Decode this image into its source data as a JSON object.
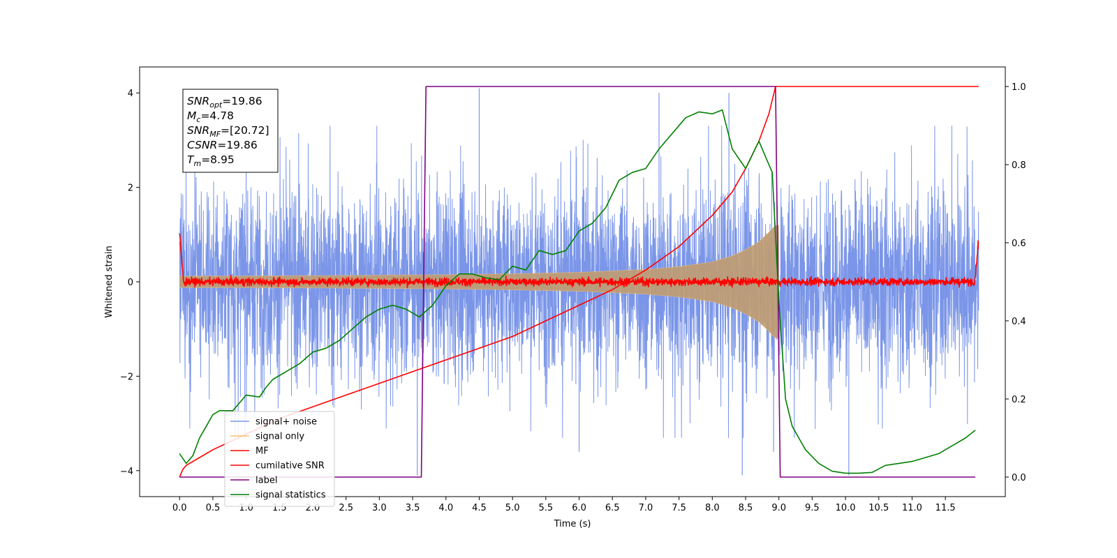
{
  "chart_data": {
    "type": "line",
    "xlabel": "Time (s)",
    "ylabel_left": "Whitened strain",
    "xlim": [
      -0.6,
      12.4
    ],
    "ylim_left": [
      -4.55,
      4.55
    ],
    "ylim_right": [
      -0.05,
      1.05
    ],
    "x_ticks": [
      "0.0",
      "0.5",
      "1.0",
      "1.5",
      "2.0",
      "2.5",
      "3.0",
      "3.5",
      "4.0",
      "4.5",
      "5.0",
      "5.5",
      "6.0",
      "6.5",
      "7.0",
      "7.5",
      "8.0",
      "8.5",
      "9.0",
      "9.5",
      "10.0",
      "10.5",
      "11.0",
      "11.5"
    ],
    "y_ticks_left": [
      "−4",
      "−2",
      "0",
      "2",
      "4"
    ],
    "y_ticks_right": [
      "0.0",
      "0.2",
      "0.4",
      "0.6",
      "0.8",
      "1.0"
    ],
    "annotation": [
      {
        "name": "SNR",
        "sub": "opt",
        "value": "=19.86"
      },
      {
        "name": "M",
        "sub": "c",
        "value": "=4.78"
      },
      {
        "name": "SNR",
        "sub": "MF",
        "value": "=[20.72]"
      },
      {
        "name": "CSNR",
        "sub": "",
        "value": "=19.86"
      },
      {
        "name": "T",
        "sub": "m",
        "value": "=8.95"
      }
    ],
    "legend": {
      "placement": "lower-left",
      "entries": [
        {
          "label": "signal+ noise",
          "color": "#7b96e8"
        },
        {
          "label": "signal only",
          "color": "#f9c06f"
        },
        {
          "label": "MF",
          "color": "#ff0000"
        },
        {
          "label": "cumilative SNR",
          "color": "#ff0000"
        },
        {
          "label": "label",
          "color": "#800080"
        },
        {
          "label": "signal statistics",
          "color": "#008000"
        }
      ]
    },
    "series": [
      {
        "name": "signal+ noise",
        "axis": "left",
        "color": "#7b96e8",
        "x_range": [
          0.0,
          12.0
        ],
        "noise_sigma": 1.0,
        "extreme_spikes": [
          [
            4.5,
            4.1
          ],
          [
            7.2,
            4.0
          ],
          [
            8.25,
            4.0
          ],
          [
            3.57,
            -4.1
          ],
          [
            8.45,
            -4.1
          ],
          [
            10.05,
            -4.1
          ],
          [
            6.0,
            -3.6
          ],
          [
            8.92,
            -3.6
          ]
        ]
      },
      {
        "name": "signal only",
        "axis": "left",
        "color": "#f9c06f",
        "x_range": [
          0.0,
          9.0
        ],
        "envelope": [
          [
            0.0,
            0.12
          ],
          [
            2.0,
            0.13
          ],
          [
            4.0,
            0.15
          ],
          [
            5.0,
            0.17
          ],
          [
            6.0,
            0.2
          ],
          [
            7.0,
            0.26
          ],
          [
            7.5,
            0.32
          ],
          [
            8.0,
            0.42
          ],
          [
            8.3,
            0.55
          ],
          [
            8.5,
            0.68
          ],
          [
            8.7,
            0.85
          ],
          [
            8.85,
            1.05
          ],
          [
            8.95,
            1.2
          ]
        ]
      },
      {
        "name": "MF",
        "axis": "left",
        "color": "#ff0000",
        "x_range": [
          0.0,
          12.0
        ],
        "edge_values": [
          [
            0.0,
            1.0
          ],
          [
            12.0,
            0.9
          ]
        ],
        "noise_sigma": 0.04
      },
      {
        "name": "cumilative SNR",
        "axis": "right",
        "color": "#ff0000",
        "x": [
          0.0,
          0.05,
          0.1,
          0.3,
          0.5,
          1.0,
          1.5,
          2.0,
          2.5,
          3.0,
          3.5,
          4.0,
          4.5,
          5.0,
          5.5,
          6.0,
          6.5,
          7.0,
          7.5,
          8.0,
          8.3,
          8.5,
          8.7,
          8.85,
          8.95,
          12.0
        ],
        "y": [
          0.0,
          0.02,
          0.03,
          0.05,
          0.07,
          0.11,
          0.15,
          0.18,
          0.21,
          0.24,
          0.27,
          0.3,
          0.33,
          0.36,
          0.4,
          0.44,
          0.48,
          0.53,
          0.59,
          0.67,
          0.73,
          0.79,
          0.86,
          0.93,
          1.0,
          1.0
        ]
      },
      {
        "name": "label",
        "axis": "right",
        "color": "#800080",
        "x": [
          0.0,
          3.63,
          3.7,
          8.95,
          9.02,
          11.95
        ],
        "y": [
          0.0,
          0.0,
          1.0,
          1.0,
          0.0,
          0.0
        ]
      },
      {
        "name": "signal statistics",
        "axis": "right",
        "color": "#008000",
        "x": [
          0.0,
          0.1,
          0.2,
          0.3,
          0.4,
          0.5,
          0.6,
          0.8,
          1.0,
          1.2,
          1.3,
          1.4,
          1.6,
          1.8,
          2.0,
          2.2,
          2.4,
          2.6,
          2.8,
          3.0,
          3.2,
          3.4,
          3.6,
          3.8,
          4.0,
          4.2,
          4.4,
          4.6,
          4.8,
          5.0,
          5.2,
          5.4,
          5.6,
          5.8,
          6.0,
          6.2,
          6.4,
          6.6,
          6.8,
          7.0,
          7.2,
          7.4,
          7.6,
          7.8,
          8.0,
          8.15,
          8.3,
          8.5,
          8.7,
          8.8,
          8.9,
          9.0,
          9.1,
          9.2,
          9.4,
          9.6,
          9.8,
          10.0,
          10.2,
          10.4,
          10.6,
          10.8,
          11.0,
          11.2,
          11.4,
          11.6,
          11.8,
          11.95
        ],
        "y": [
          0.06,
          0.035,
          0.055,
          0.1,
          0.13,
          0.16,
          0.17,
          0.17,
          0.21,
          0.205,
          0.23,
          0.25,
          0.27,
          0.29,
          0.32,
          0.33,
          0.35,
          0.38,
          0.41,
          0.43,
          0.44,
          0.43,
          0.41,
          0.44,
          0.49,
          0.52,
          0.52,
          0.51,
          0.505,
          0.54,
          0.53,
          0.58,
          0.57,
          0.58,
          0.63,
          0.65,
          0.69,
          0.76,
          0.78,
          0.79,
          0.84,
          0.88,
          0.92,
          0.935,
          0.93,
          0.94,
          0.84,
          0.79,
          0.86,
          0.82,
          0.78,
          0.45,
          0.2,
          0.13,
          0.07,
          0.035,
          0.015,
          0.01,
          0.01,
          0.012,
          0.03,
          0.035,
          0.04,
          0.05,
          0.06,
          0.08,
          0.1,
          0.12
        ]
      }
    ]
  }
}
